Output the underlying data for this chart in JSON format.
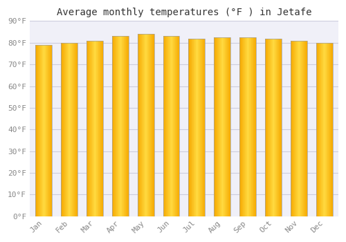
{
  "title": "Average monthly temperatures (°F ) in Jetafe",
  "months": [
    "Jan",
    "Feb",
    "Mar",
    "Apr",
    "May",
    "Jun",
    "Jul",
    "Aug",
    "Sep",
    "Oct",
    "Nov",
    "Dec"
  ],
  "values": [
    79.0,
    80.0,
    81.0,
    83.0,
    84.0,
    83.0,
    82.0,
    82.5,
    82.5,
    82.0,
    81.0,
    80.0
  ],
  "bar_color_center": "#FFD840",
  "bar_color_edge": "#F5A800",
  "bar_outline_color": "#A0A0A0",
  "background_color": "#FFFFFF",
  "plot_bg_color": "#F0F0F8",
  "grid_color": "#CCCCDD",
  "ylim": [
    0,
    90
  ],
  "ytick_step": 10,
  "title_fontsize": 10,
  "tick_fontsize": 8,
  "tick_font": "monospace",
  "bar_width": 0.65
}
